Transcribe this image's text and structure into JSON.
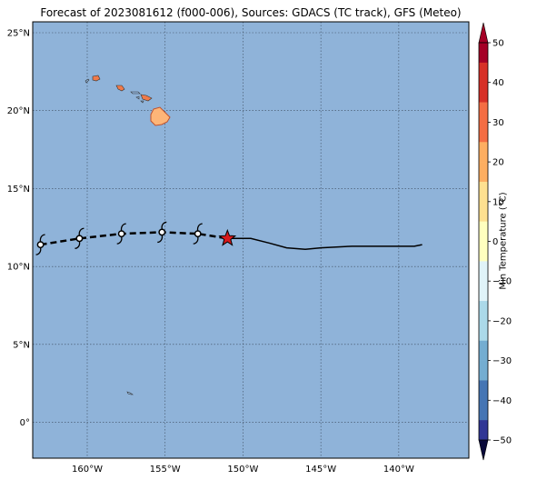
{
  "title": "Forecast of 2023081612 (f000-006), Sources: GDACS (TC track), GFS (Meteo)",
  "colors": {
    "ocean": "#8fb3d9",
    "land_hot": "#f07a4a",
    "land_warm": "#fdb578",
    "track": "#000000",
    "current_position_star": "#d7191c"
  },
  "map": {
    "lat_ticks": [
      "25°N",
      "20°N",
      "15°N",
      "10°N",
      "5°N",
      "0°"
    ],
    "lon_ticks": [
      "160°W",
      "155°W",
      "150°W",
      "145°W",
      "140°W"
    ],
    "extent": {
      "lon_min": -163.5,
      "lon_max": -135.5,
      "lat_min": -2.3,
      "lat_max": 25.7
    }
  },
  "track": {
    "past_positions": [
      {
        "lon": -163.0,
        "lat": 11.4
      },
      {
        "lon": -160.5,
        "lat": 11.8
      },
      {
        "lon": -157.8,
        "lat": 12.1
      },
      {
        "lon": -155.2,
        "lat": 12.2
      },
      {
        "lon": -152.9,
        "lat": 12.1
      }
    ],
    "current_position": {
      "lon": -151.0,
      "lat": 11.8
    },
    "forecast_positions": [
      {
        "lon": -151.0,
        "lat": 11.8
      },
      {
        "lon": -149.5,
        "lat": 11.8
      },
      {
        "lon": -148.3,
        "lat": 11.5
      },
      {
        "lon": -147.2,
        "lat": 11.2
      },
      {
        "lon": -146.0,
        "lat": 11.1
      },
      {
        "lon": -145.0,
        "lat": 11.2
      },
      {
        "lon": -143.0,
        "lat": 11.3
      },
      {
        "lon": -140.5,
        "lat": 11.3
      },
      {
        "lon": -139.0,
        "lat": 11.3
      },
      {
        "lon": -138.5,
        "lat": 11.4
      }
    ]
  },
  "colorbar": {
    "label": "Min Temperature (°C)",
    "ticks": [
      "50",
      "40",
      "30",
      "20",
      "10",
      "0",
      "−10",
      "−20",
      "−30",
      "−40",
      "−50"
    ],
    "colors": [
      "#a50026",
      "#d73027",
      "#f46d43",
      "#fdae61",
      "#fee090",
      "#ffffbf",
      "#e0f3f8",
      "#abd9e9",
      "#74add1",
      "#4575b4",
      "#313695"
    ]
  }
}
